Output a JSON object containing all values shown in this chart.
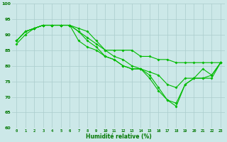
{
  "xlabel": "Humidité relative (%)",
  "background_color": "#cce8e8",
  "grid_color": "#aacccc",
  "line_color": "#00bb00",
  "xlim": [
    -0.5,
    23.5
  ],
  "ylim": [
    60,
    100
  ],
  "yticks": [
    60,
    65,
    70,
    75,
    80,
    85,
    90,
    95,
    100
  ],
  "xticks": [
    0,
    1,
    2,
    3,
    4,
    5,
    6,
    7,
    8,
    9,
    10,
    11,
    12,
    13,
    14,
    15,
    16,
    17,
    18,
    19,
    20,
    21,
    22,
    23
  ],
  "series": [
    [
      87,
      90,
      92,
      93,
      93,
      93,
      93,
      92,
      91,
      88,
      85,
      85,
      85,
      85,
      83,
      83,
      82,
      82,
      81,
      81,
      81,
      81,
      81,
      81
    ],
    [
      88,
      91,
      92,
      93,
      93,
      93,
      93,
      91,
      89,
      87,
      85,
      83,
      82,
      80,
      79,
      78,
      77,
      74,
      73,
      76,
      76,
      79,
      77,
      81
    ],
    [
      88,
      91,
      92,
      93,
      93,
      93,
      93,
      91,
      88,
      86,
      83,
      82,
      80,
      79,
      79,
      77,
      73,
      69,
      68,
      74,
      76,
      76,
      77,
      81
    ],
    [
      88,
      91,
      92,
      93,
      93,
      93,
      93,
      88,
      86,
      85,
      83,
      82,
      80,
      79,
      79,
      76,
      72,
      69,
      67,
      74,
      76,
      76,
      76,
      81
    ]
  ]
}
